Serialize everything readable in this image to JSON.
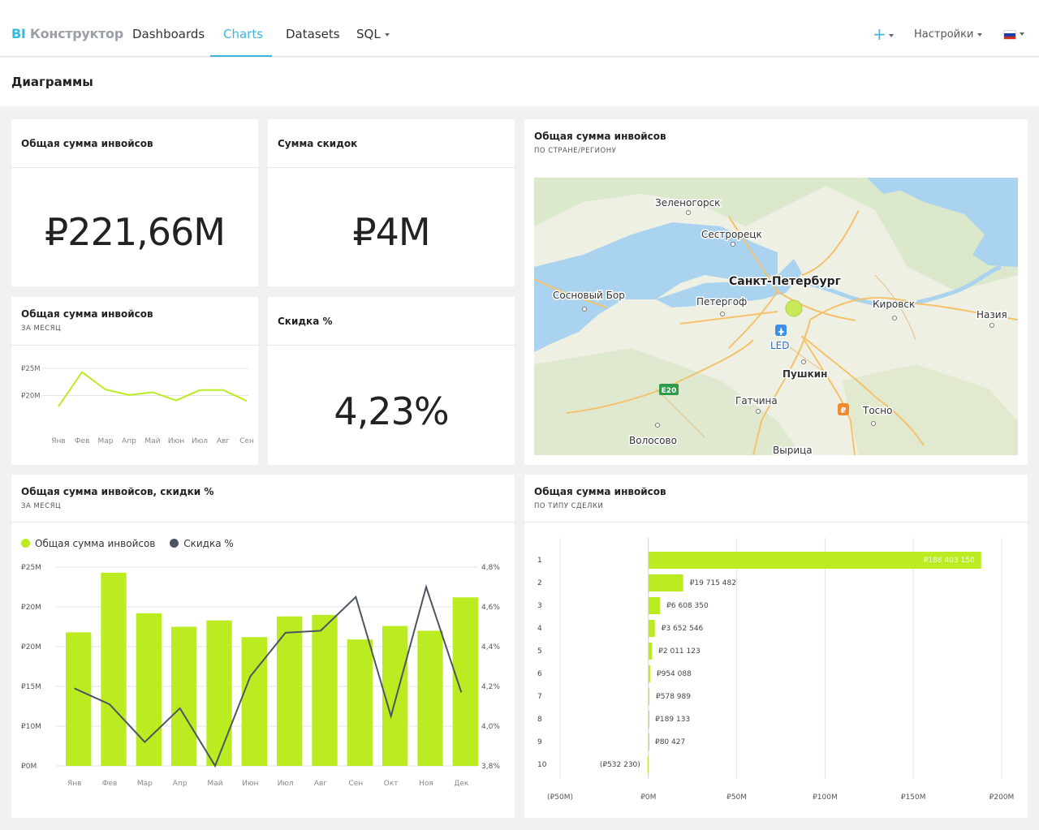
{
  "header": {
    "logo_bi": "BI",
    "logo_name": "Конструктор",
    "nav": [
      "Dashboards",
      "Charts",
      "Datasets",
      "SQL"
    ],
    "plus": "+",
    "settings": "Настройки"
  },
  "page_title": "Диаграммы",
  "colors": {
    "accent": "#3ab4dd",
    "lime": "#bbec22",
    "line": "#4e5562"
  },
  "cards": {
    "total": {
      "title": "Общая сумма инвойсов",
      "value": "₽221,66M"
    },
    "discounts": {
      "title": "Сумма скидок",
      "value": "₽4M"
    },
    "monthly": {
      "title": "Общая сумма инвойсов",
      "subtitle": "ЗА МЕСЯЦ"
    },
    "discount_pct": {
      "title": "Скидка %",
      "value": "4,23%"
    },
    "map": {
      "title": "Общая сумма инвойсов",
      "subtitle": "ПО СТРАНЕ/РЕГИОНУ",
      "labels": [
        "Зеленогорск",
        "Сестрорецк",
        "Санкт-Петербург",
        "Сосновый Бор",
        "Петергоф",
        "Кировск",
        "Назия",
        "LED",
        "Пушкин",
        "Гатчина",
        "Тосно",
        "Волосово",
        "Вырица",
        "E20"
      ]
    },
    "combo": {
      "title": "Общая сумма инвойсов, скидки %",
      "subtitle": "ЗА МЕСЯЦ"
    },
    "deal": {
      "title": "Общая сумма инвойсов",
      "subtitle": "ПО ТИПУ СДЕЛКИ"
    }
  },
  "chart_data": [
    {
      "type": "line",
      "categories": [
        "Янв",
        "Фев",
        "Мар",
        "Апр",
        "Май",
        "Июн",
        "Июл",
        "Авг",
        "Сен"
      ],
      "series": [
        {
          "values": [
            18,
            24.3,
            21.1,
            20.1,
            20.6,
            19.1,
            21,
            21,
            19
          ]
        }
      ],
      "y_ticks": [
        "₽25M",
        "₽20M"
      ],
      "ylim": [
        15,
        27
      ]
    },
    {
      "type": "bar",
      "categories": [
        "Янв",
        "Фев",
        "Мар",
        "Апр",
        "Май",
        "Июн",
        "Июл",
        "Авг",
        "Сен",
        "Окт",
        "Ноя",
        "Дек"
      ],
      "y_ticks_left": [
        "₽25M",
        "₽20M",
        "₽20M",
        "₽15M",
        "₽10M",
        "₽0M"
      ],
      "y_ticks_right": [
        "4,8%",
        "4,6%",
        "4,4%",
        "4,2%",
        "4,0%",
        "3,8%"
      ],
      "series": [
        {
          "name": "Общая сумма инвойсов",
          "values": [
            16.8,
            24.3,
            19.2,
            17.5,
            18.3,
            16.2,
            18.8,
            19,
            15.9,
            17.6,
            17,
            21.2
          ]
        },
        {
          "name": "Скидка %",
          "values": [
            4.19,
            4.11,
            3.92,
            4.09,
            3.8,
            4.25,
            4.47,
            4.48,
            4.65,
            4.05,
            4.7,
            4.17
          ]
        }
      ],
      "ylim_left": [
        0,
        25
      ],
      "ylim_right": [
        3.8,
        4.8
      ]
    },
    {
      "type": "bar",
      "orientation": "horizontal",
      "categories": [
        "1",
        "2",
        "3",
        "4",
        "5",
        "6",
        "7",
        "8",
        "9",
        "10"
      ],
      "values": [
        188403150,
        19715482,
        6608350,
        3652546,
        2011123,
        954088,
        578989,
        189133,
        80427,
        -532230
      ],
      "value_labels": [
        "₽188 403 150",
        "₽19 715 482",
        "₽6 608 350",
        "₽3 652 546",
        "₽2 011 123",
        "₽954 088",
        "₽578 989",
        "₽189 133",
        "₽80 427",
        "(₽532 230)"
      ],
      "x_ticks": [
        "(₽50M)",
        "₽0M",
        "₽50M",
        "₽100M",
        "₽150M",
        "₽200M"
      ],
      "xlim": [
        -50000000,
        200000000
      ]
    }
  ]
}
